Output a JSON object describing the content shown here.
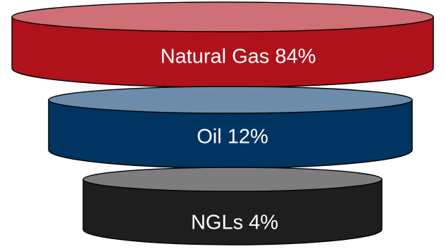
{
  "chart_data": {
    "type": "funnel",
    "title": "",
    "categories": [
      "Natural Gas",
      "Oil",
      "NGLs"
    ],
    "values": [
      84,
      12,
      4
    ],
    "unit": "%"
  },
  "tiers": [
    {
      "label": "Natural Gas 84%",
      "color": "#b0121b",
      "top_color": "#cf6f76"
    },
    {
      "label": "Oil 12%",
      "color": "#003461",
      "top_color": "#6c8caa"
    },
    {
      "label": "NGLs 4%",
      "color": "#1e1e1e",
      "top_color": "#7d7d7d"
    }
  ]
}
